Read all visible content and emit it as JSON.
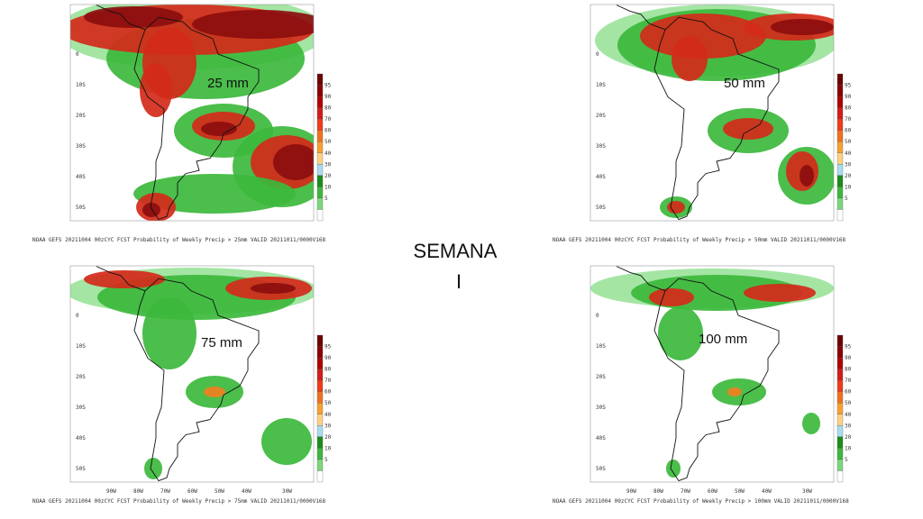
{
  "panels": [
    {
      "threshold": "25 mm",
      "caption": "NOAA GEFS 20211004 00zCYC FCST Probability of Weekly Precip > 25mm VALID 20211011/0000V168"
    },
    {
      "threshold": "50 mm",
      "caption": "NOAA GEFS 20211004 00zCYC FCST Probability of Weekly Precip > 50mm VALID 20211011/0000V168"
    },
    {
      "threshold": "75 mm",
      "caption": "NOAA GEFS 20211004 00zCYC FCST Probability of Weekly Precip > 75mm VALID 20211011/0000V168"
    },
    {
      "threshold": "100 mm",
      "caption": "NOAA GEFS 20211004 00zCYC FCST Probability of Weekly Precip > 100mm VALID 20211011/0000V168"
    }
  ],
  "lat_labels": [
    "0",
    "10S",
    "20S",
    "30S",
    "40S",
    "50S"
  ],
  "lon_labels": [
    "90W",
    "80W",
    "70W",
    "60W",
    "50W",
    "40W",
    "30W"
  ],
  "colorbar_labels": [
    "95",
    "90",
    "80",
    "70",
    "60",
    "50",
    "40",
    "30",
    "20",
    "10",
    "5"
  ],
  "title": {
    "line1": "SEMANA",
    "line2": "I"
  }
}
